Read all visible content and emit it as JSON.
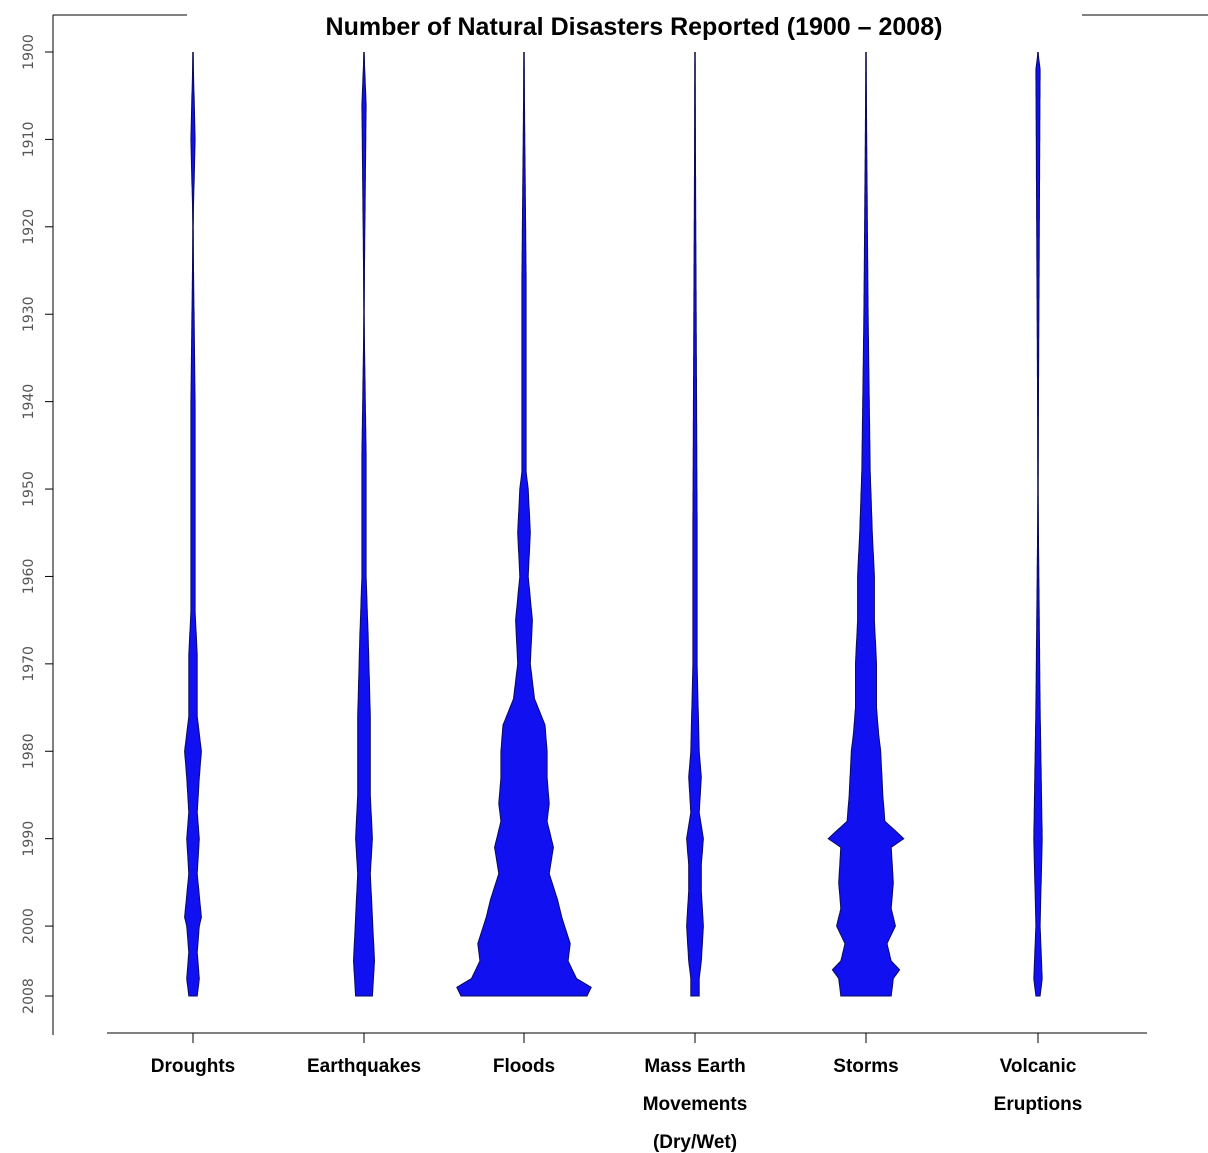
{
  "chart_data": {
    "type": "violin",
    "title": "Number of Natural Disasters Reported (1900 – 2008)",
    "xlabel": "",
    "ylabel": "",
    "ylim": [
      1900,
      2008
    ],
    "y_ticks": [
      "1900",
      "1910",
      "1920",
      "1930",
      "1940",
      "1950",
      "1960",
      "1970",
      "1980",
      "1990",
      "2000",
      "2008"
    ],
    "tick_values": [
      1900,
      1910,
      1920,
      1930,
      1940,
      1950,
      1960,
      1970,
      1980,
      1990,
      2000,
      2008
    ],
    "categories": [
      {
        "lines": [
          "Droughts"
        ]
      },
      {
        "lines": [
          "Earthquakes"
        ]
      },
      {
        "lines": [
          "Floods"
        ]
      },
      {
        "lines": [
          "Mass Earth",
          "Movements",
          "(Dry/Wet)"
        ]
      },
      {
        "lines": [
          "Storms"
        ]
      },
      {
        "lines": [
          "Volcanic",
          "Eruptions"
        ]
      }
    ],
    "series": [
      {
        "category": "Droughts",
        "years": [
          1900,
          1910,
          1920,
          1940,
          1964,
          1969,
          1976,
          1980,
          1983,
          1987,
          1990,
          1994,
          1999,
          2000,
          2003,
          2006,
          2008
        ],
        "values": [
          0,
          1,
          0,
          1,
          1,
          2,
          2,
          4,
          3,
          2,
          3,
          2,
          4,
          3,
          2,
          3,
          2
        ]
      },
      {
        "category": "Earthquakes",
        "years": [
          1900,
          1906,
          1930,
          1946,
          1960,
          1967,
          1976,
          1980,
          1985,
          1990,
          1994,
          1999,
          2004,
          2008
        ],
        "values": [
          0,
          1,
          0,
          1,
          1,
          2,
          3,
          3,
          3,
          4,
          3,
          4,
          5,
          4
        ]
      },
      {
        "category": "Floods",
        "years": [
          1900,
          1926,
          1948,
          1950,
          1955,
          1960,
          1965,
          1970,
          1974,
          1977,
          1980,
          1983,
          1986,
          1988,
          1991,
          1994,
          1997,
          1999,
          2002,
          2004,
          2006,
          2007,
          2008
        ],
        "values": [
          0,
          1,
          1,
          2,
          3,
          2,
          4,
          3,
          5,
          10,
          11,
          11,
          12,
          11,
          14,
          12,
          16,
          18,
          22,
          21,
          25,
          32,
          30
        ]
      },
      {
        "category": "Mass Earth Movements (Dry/Wet)",
        "years": [
          1900,
          1954,
          1970,
          1980,
          1983,
          1987,
          1990,
          1993,
          1996,
          2000,
          2004,
          2006,
          2008
        ],
        "values": [
          0,
          1,
          1,
          2,
          3,
          2,
          4,
          3,
          3,
          4,
          3,
          2,
          2
        ]
      },
      {
        "category": "Storms",
        "years": [
          1900,
          1930,
          1948,
          1955,
          1960,
          1965,
          1970,
          1975,
          1978,
          1980,
          1985,
          1988,
          1990,
          1991,
          1995,
          1998,
          2000,
          2002,
          2004,
          2005,
          2006,
          2008
        ],
        "values": [
          0,
          1,
          2,
          3,
          4,
          4,
          5,
          5,
          6,
          7,
          8,
          9,
          18,
          12,
          13,
          12,
          14,
          10,
          12,
          16,
          13,
          12
        ]
      },
      {
        "category": "Volcanic Eruptions",
        "years": [
          1900,
          1902,
          1950,
          1975,
          1990,
          2000,
          2006,
          2008
        ],
        "values": [
          0,
          1,
          0,
          1,
          2,
          1,
          2,
          1
        ]
      }
    ],
    "grid": false,
    "legend": "none",
    "colors": {
      "fill": "#1010f0",
      "outline": "#0a0a60",
      "axis": "#000000",
      "tick_label": "#555555"
    }
  }
}
